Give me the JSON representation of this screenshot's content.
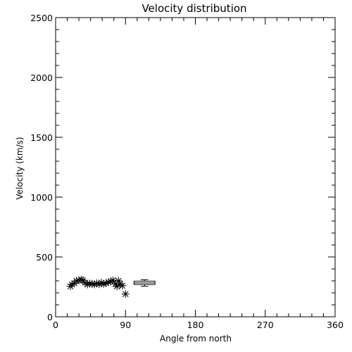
{
  "chart_data": {
    "type": "scatter",
    "title": "Velocity distribution",
    "xlabel": "Angle from north",
    "ylabel": "Velocity (km/s)",
    "xlim": [
      0,
      360
    ],
    "ylim": [
      0,
      2500
    ],
    "xticks": [
      "0",
      "90",
      "180",
      "270",
      "360"
    ],
    "yticks": [
      "0",
      "500",
      "1000",
      "1500",
      "2000",
      "2500"
    ],
    "grid": false,
    "legend": "none",
    "marker": "asterisk",
    "points": [
      {
        "x": 19,
        "y": 255
      },
      {
        "x": 21,
        "y": 270
      },
      {
        "x": 24,
        "y": 280
      },
      {
        "x": 27,
        "y": 300
      },
      {
        "x": 30,
        "y": 305
      },
      {
        "x": 33,
        "y": 310
      },
      {
        "x": 35,
        "y": 305
      },
      {
        "x": 38,
        "y": 285
      },
      {
        "x": 41,
        "y": 270
      },
      {
        "x": 44,
        "y": 278
      },
      {
        "x": 47,
        "y": 275
      },
      {
        "x": 50,
        "y": 270
      },
      {
        "x": 53,
        "y": 280
      },
      {
        "x": 56,
        "y": 272
      },
      {
        "x": 59,
        "y": 285
      },
      {
        "x": 62,
        "y": 275
      },
      {
        "x": 65,
        "y": 280
      },
      {
        "x": 68,
        "y": 290
      },
      {
        "x": 71,
        "y": 295
      },
      {
        "x": 74,
        "y": 305
      },
      {
        "x": 77,
        "y": 275
      },
      {
        "x": 79,
        "y": 255
      },
      {
        "x": 81,
        "y": 300
      },
      {
        "x": 83,
        "y": 275
      },
      {
        "x": 86,
        "y": 260
      },
      {
        "x": 90,
        "y": 190
      }
    ],
    "boxplot": {
      "x_range": [
        101,
        128
      ],
      "min": 255,
      "q1": 270,
      "median": 283,
      "q3": 298,
      "max": 310
    }
  }
}
